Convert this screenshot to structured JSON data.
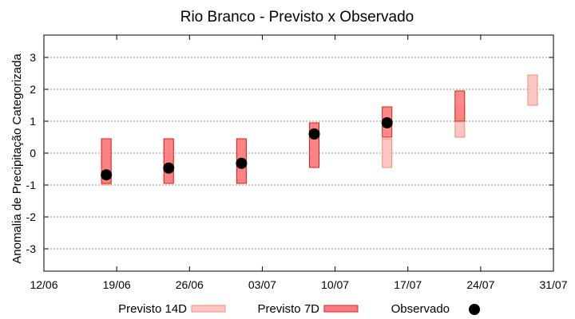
{
  "chart_data": {
    "type": "scatter",
    "title": "Rio Branco - Previsto x Observado",
    "ylabel": "Anomalia de Precipitação Categorizada",
    "xlabel": "",
    "xlim": [
      "12/06",
      "31/07"
    ],
    "ylim": [
      -3.7,
      3.7
    ],
    "x_ticks": [
      "12/06",
      "19/06",
      "26/06",
      "03/07",
      "10/07",
      "17/07",
      "24/07",
      "31/07"
    ],
    "y_ticks": [
      "3",
      "2",
      "1",
      "0",
      "-1",
      "-2",
      "-3"
    ],
    "y_tick_values": [
      3,
      2,
      1,
      0,
      -1,
      -2,
      -3
    ],
    "grid": true,
    "legend_position": "bottom",
    "colors": {
      "previsto_14d_fill": "#f9c6c0",
      "previsto_14d_stroke": "#f08a80",
      "previsto_7d_fill": "#ff7b7b",
      "previsto_7d_stroke": "#d62020",
      "observado": "#000000",
      "grid": "#9a9a9a"
    },
    "series": [
      {
        "name": "Previsto 14D",
        "ranges": [
          {
            "x": "18/06",
            "low": -1.0,
            "high": 0.45
          },
          {
            "x": "24/06",
            "low": -0.95,
            "high": 0.45
          },
          {
            "x": "01/07",
            "low": -0.95,
            "high": 0.45
          },
          {
            "x": "08/07",
            "low": -0.45,
            "high": 0.95
          },
          {
            "x": "15/07",
            "low": -0.45,
            "high": 0.45
          },
          {
            "x": "22/07",
            "low": 0.5,
            "high": 1.45
          },
          {
            "x": "29/07",
            "low": 1.5,
            "high": 2.45
          }
        ]
      },
      {
        "name": "Previsto 7D",
        "ranges": [
          {
            "x": "18/06",
            "low": -0.95,
            "high": 0.45
          },
          {
            "x": "24/06",
            "low": -0.95,
            "high": 0.45
          },
          {
            "x": "01/07",
            "low": -0.95,
            "high": 0.45
          },
          {
            "x": "08/07",
            "low": -0.45,
            "high": 0.95
          },
          {
            "x": "15/07",
            "low": 0.5,
            "high": 1.45
          },
          {
            "x": "22/07",
            "low": 1.0,
            "high": 1.95
          }
        ]
      },
      {
        "name": "Observado",
        "points": [
          {
            "x": "18/06",
            "y": -0.68
          },
          {
            "x": "24/06",
            "y": -0.47
          },
          {
            "x": "01/07",
            "y": -0.32
          },
          {
            "x": "08/07",
            "y": 0.6
          },
          {
            "x": "15/07",
            "y": 0.95
          }
        ]
      }
    ]
  }
}
